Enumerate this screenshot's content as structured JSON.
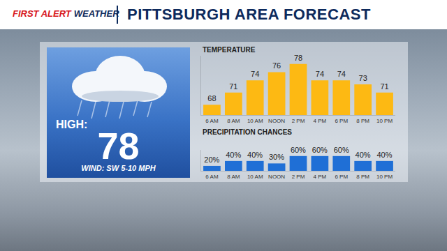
{
  "header": {
    "brand": [
      "FIRST ALERT",
      "WEATHER"
    ],
    "title": "PITTSBURGH AREA FORECAST"
  },
  "summary": {
    "high_label": "HIGH:",
    "high": 78,
    "wind": "WIND: SW 5-10 MPH"
  },
  "chart_data": [
    {
      "type": "bar",
      "title": "TEMPERATURE",
      "categories": [
        "6 AM",
        "8 AM",
        "10 AM",
        "NOON",
        "2 PM",
        "4 PM",
        "6 PM",
        "8 PM",
        "10 PM"
      ],
      "values": [
        68,
        71,
        74,
        76,
        78,
        74,
        74,
        73,
        71
      ],
      "color": "#fdb913",
      "ylim": [
        65.5,
        80
      ],
      "yticks": [],
      "tick_labels": "x",
      "data_labels": true,
      "grid": false
    },
    {
      "type": "bar",
      "title": "PRECIPITATION CHANCES",
      "categories": [
        "6 AM",
        "8 AM",
        "10 AM",
        "NOON",
        "2 PM",
        "4 PM",
        "6 PM",
        "8 PM",
        "10 PM"
      ],
      "values": [
        20,
        40,
        40,
        30,
        60,
        60,
        60,
        40,
        40
      ],
      "value_labels": [
        "20%",
        "40%",
        "40%",
        "30%",
        "60%",
        "60%",
        "60%",
        "40%",
        "40%"
      ],
      "color": "#1f6fd6",
      "ylim": [
        0,
        85
      ],
      "yticks": [],
      "tick_labels": "x",
      "data_labels": true,
      "grid": false
    }
  ]
}
